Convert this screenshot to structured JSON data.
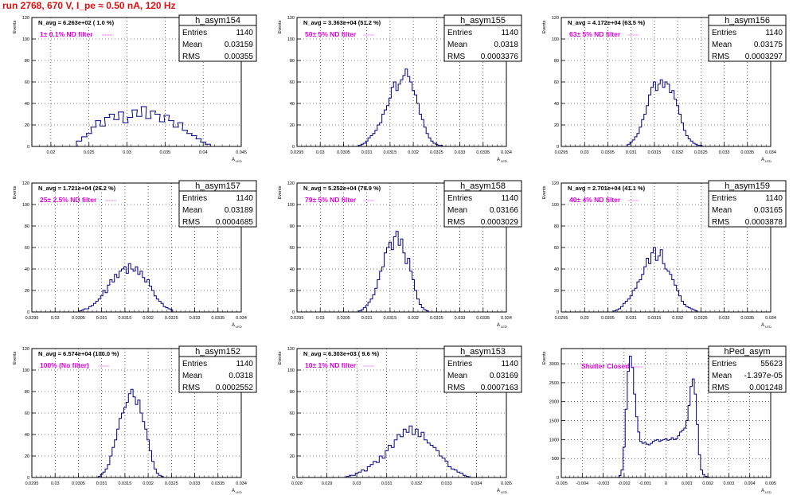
{
  "page": {
    "title": "run 2768,   670 V, I_pe ≈ 0.50 nA, 120 Hz"
  },
  "colors": {
    "hist": "#000080",
    "title": "#e01010",
    "filter": "#e000e0",
    "grid": "#000000"
  },
  "stat_labels": {
    "entries": "Entries",
    "mean": "Mean",
    "rms": "RMS"
  },
  "chart_data": [
    {
      "type": "histogram",
      "name": "h_asym154",
      "navg": "N_avg = 6.263e+02 ( 1.0 %)",
      "filter": "1± 0.1% ND filter",
      "ylabel": "Events",
      "xlabel": "A",
      "xlabel_sub": "LED",
      "xlim": [
        0.0175,
        0.045
      ],
      "ylim": [
        0,
        120
      ],
      "xticks": [
        "0.02",
        "0.025",
        "0.03",
        "0.035",
        "0.04",
        "0.045"
      ],
      "xtick_vals": [
        0.02,
        0.025,
        0.03,
        0.035,
        0.04,
        0.045
      ],
      "yticks": [
        0,
        20,
        40,
        60,
        80,
        100,
        120
      ],
      "stats": {
        "entries": "1140",
        "mean": "0.03159",
        "rms": "0.00355"
      },
      "x": [
        0.0237,
        0.0244,
        0.025,
        0.0256,
        0.0262,
        0.0268,
        0.0274,
        0.028,
        0.0286,
        0.0292,
        0.0298,
        0.0304,
        0.031,
        0.0316,
        0.0322,
        0.0328,
        0.0334,
        0.034,
        0.0346,
        0.0352,
        0.0358,
        0.0364,
        0.037,
        0.0376,
        0.0382,
        0.0388,
        0.0394,
        0.04,
        0.0406
      ],
      "values": [
        5,
        9,
        12,
        18,
        24,
        19,
        27,
        30,
        25,
        32,
        22,
        27,
        34,
        28,
        37,
        26,
        33,
        30,
        23,
        29,
        24,
        18,
        22,
        15,
        12,
        10,
        7,
        4,
        2
      ]
    },
    {
      "type": "histogram",
      "name": "h_asym155",
      "navg": "N_avg = 3.363e+04 (51.2 %)",
      "filter": "50± 5% ND filter",
      "ylabel": "Events",
      "xlabel": "A",
      "xlabel_sub": "LED",
      "xlim": [
        0.0295,
        0.034
      ],
      "ylim": [
        0,
        120
      ],
      "xticks": [
        "0.0295",
        "0.03",
        "0.0305",
        "0.031",
        "0.0315",
        "0.032",
        "0.0325",
        "0.033",
        "0.0335",
        "0.034"
      ],
      "xtick_vals": [
        0.0295,
        0.03,
        0.0305,
        0.031,
        0.0315,
        0.032,
        0.0325,
        0.033,
        0.0335,
        0.034
      ],
      "yticks": [
        0,
        20,
        40,
        60,
        80,
        100,
        120
      ],
      "stats": {
        "entries": "1140",
        "mean": "0.0318",
        "rms": "0.0003376"
      },
      "x": [
        0.03085,
        0.0309,
        0.03095,
        0.031,
        0.03105,
        0.0311,
        0.03115,
        0.0312,
        0.03125,
        0.0313,
        0.03135,
        0.0314,
        0.03145,
        0.0315,
        0.03155,
        0.0316,
        0.03165,
        0.0317,
        0.03175,
        0.0318,
        0.03185,
        0.0319,
        0.03195,
        0.032,
        0.03205,
        0.0321,
        0.03215,
        0.0322,
        0.03225,
        0.0323,
        0.03235,
        0.0324,
        0.03245,
        0.0325,
        0.03255,
        0.0326
      ],
      "values": [
        1,
        2,
        3,
        5,
        8,
        10,
        12,
        15,
        20,
        22,
        30,
        34,
        38,
        45,
        55,
        60,
        52,
        58,
        62,
        66,
        72,
        65,
        60,
        52,
        48,
        40,
        30,
        25,
        18,
        12,
        8,
        5,
        3,
        2,
        1,
        1
      ]
    },
    {
      "type": "histogram",
      "name": "h_asym156",
      "navg": "N_avg = 4.172e+04 (63.5 %)",
      "filter": "63± 5% ND filter",
      "ylabel": "Events",
      "xlabel": "A",
      "xlabel_sub": "LED",
      "xlim": [
        0.0295,
        0.034
      ],
      "ylim": [
        0,
        120
      ],
      "xticks": [
        "0.0295",
        "0.03",
        "0.0305",
        "0.031",
        "0.0315",
        "0.032",
        "0.0325",
        "0.033",
        "0.0335",
        "0.034"
      ],
      "xtick_vals": [
        0.0295,
        0.03,
        0.0305,
        0.031,
        0.0315,
        0.032,
        0.0325,
        0.033,
        0.0335,
        0.034
      ],
      "yticks": [
        0,
        20,
        40,
        60,
        80,
        100,
        120
      ],
      "stats": {
        "entries": "1140",
        "mean": "0.03175",
        "rms": "0.0003297"
      },
      "x": [
        0.03095,
        0.031,
        0.03105,
        0.0311,
        0.03115,
        0.0312,
        0.03125,
        0.0313,
        0.03135,
        0.0314,
        0.03145,
        0.0315,
        0.03155,
        0.0316,
        0.03165,
        0.0317,
        0.03175,
        0.0318,
        0.03185,
        0.0319,
        0.03195,
        0.032,
        0.03205,
        0.0321,
        0.03215,
        0.0322,
        0.03225,
        0.0323,
        0.03235,
        0.0324,
        0.03245,
        0.0325
      ],
      "values": [
        2,
        4,
        6,
        9,
        12,
        18,
        25,
        30,
        38,
        48,
        55,
        60,
        52,
        58,
        62,
        55,
        60,
        58,
        50,
        52,
        44,
        38,
        30,
        22,
        15,
        10,
        7,
        5,
        3,
        2,
        1,
        1
      ]
    },
    {
      "type": "histogram",
      "name": "h_asym157",
      "navg": "N_avg = 1.721e+04 (26.2 %)",
      "filter": "25± 2.5% ND filter",
      "ylabel": "Events",
      "xlabel": "A",
      "xlabel_sub": "LED",
      "xlim": [
        0.0295,
        0.034
      ],
      "ylim": [
        0,
        120
      ],
      "xticks": [
        "0.0295",
        "0.03",
        "0.0305",
        "0.031",
        "0.0315",
        "0.032",
        "0.0325",
        "0.033",
        "0.0335",
        "0.034"
      ],
      "xtick_vals": [
        0.0295,
        0.03,
        0.0305,
        0.031,
        0.0315,
        0.032,
        0.0325,
        0.033,
        0.0335,
        0.034
      ],
      "yticks": [
        0,
        20,
        40,
        60,
        80,
        100,
        120
      ],
      "stats": {
        "entries": "1140",
        "mean": "0.03189",
        "rms": "0.0004685"
      },
      "x": [
        0.03055,
        0.0306,
        0.03065,
        0.0307,
        0.03075,
        0.0308,
        0.03085,
        0.0309,
        0.03095,
        0.031,
        0.03105,
        0.0311,
        0.03115,
        0.0312,
        0.03125,
        0.0313,
        0.03135,
        0.0314,
        0.03145,
        0.0315,
        0.03155,
        0.0316,
        0.03165,
        0.0317,
        0.03175,
        0.0318,
        0.03185,
        0.0319,
        0.03195,
        0.032,
        0.03205,
        0.0321,
        0.03215,
        0.0322,
        0.03225,
        0.0323,
        0.03235,
        0.0324,
        0.03245,
        0.0325
      ],
      "values": [
        1,
        2,
        3,
        3,
        5,
        6,
        8,
        10,
        12,
        15,
        20,
        18,
        25,
        30,
        28,
        35,
        32,
        38,
        40,
        42,
        36,
        45,
        40,
        38,
        42,
        35,
        38,
        32,
        28,
        30,
        24,
        20,
        15,
        12,
        10,
        8,
        5,
        4,
        3,
        2
      ]
    },
    {
      "type": "histogram",
      "name": "h_asym158",
      "navg": "N_avg = 5.252e+04 (79.9 %)",
      "filter": "79± 5% ND filter",
      "ylabel": "Events",
      "xlabel": "A",
      "xlabel_sub": "LED",
      "xlim": [
        0.0295,
        0.034
      ],
      "ylim": [
        0,
        120
      ],
      "xticks": [
        "0.0295",
        "0.03",
        "0.0305",
        "0.031",
        "0.0315",
        "0.032",
        "0.0325",
        "0.033",
        "0.0335",
        "0.034"
      ],
      "xtick_vals": [
        0.0295,
        0.03,
        0.0305,
        0.031,
        0.0315,
        0.032,
        0.0325,
        0.033,
        0.0335,
        0.034
      ],
      "yticks": [
        0,
        20,
        40,
        60,
        80,
        100,
        120
      ],
      "stats": {
        "entries": "1140",
        "mean": "0.03166",
        "rms": "0.0003029"
      },
      "x": [
        0.03085,
        0.0309,
        0.03095,
        0.031,
        0.03105,
        0.0311,
        0.03115,
        0.0312,
        0.03125,
        0.0313,
        0.03135,
        0.0314,
        0.03145,
        0.0315,
        0.03155,
        0.0316,
        0.03165,
        0.0317,
        0.03175,
        0.0318,
        0.03185,
        0.0319,
        0.03195,
        0.032,
        0.03205,
        0.0321,
        0.03215,
        0.0322,
        0.03225,
        0.0323
      ],
      "values": [
        1,
        2,
        4,
        6,
        9,
        12,
        16,
        22,
        30,
        38,
        42,
        55,
        60,
        65,
        58,
        70,
        75,
        62,
        68,
        55,
        45,
        50,
        38,
        30,
        20,
        12,
        7,
        4,
        2,
        1
      ]
    },
    {
      "type": "histogram",
      "name": "h_asym159",
      "navg": "N_avg = 2.701e+04 (41.1 %)",
      "filter": "40± 4% ND filter",
      "ylabel": "Events",
      "xlabel": "A",
      "xlabel_sub": "LED",
      "xlim": [
        0.0295,
        0.034
      ],
      "ylim": [
        0,
        120
      ],
      "xticks": [
        "0.0295",
        "0.03",
        "0.0305",
        "0.031",
        "0.0315",
        "0.032",
        "0.0325",
        "0.033",
        "0.0335",
        "0.034"
      ],
      "xtick_vals": [
        0.0295,
        0.03,
        0.0305,
        0.031,
        0.0315,
        0.032,
        0.0325,
        0.033,
        0.0335,
        0.034
      ],
      "yticks": [
        0,
        20,
        40,
        60,
        80,
        100,
        120
      ],
      "stats": {
        "entries": "1140",
        "mean": "0.03165",
        "rms": "0.0003878"
      },
      "x": [
        0.03065,
        0.0307,
        0.03075,
        0.0308,
        0.03085,
        0.0309,
        0.03095,
        0.031,
        0.03105,
        0.0311,
        0.03115,
        0.0312,
        0.03125,
        0.0313,
        0.03135,
        0.0314,
        0.03145,
        0.0315,
        0.03155,
        0.0316,
        0.03165,
        0.0317,
        0.03175,
        0.0318,
        0.03185,
        0.0319,
        0.03195,
        0.032,
        0.03205,
        0.0321,
        0.03215,
        0.0322,
        0.03225,
        0.0323,
        0.03235,
        0.0324
      ],
      "values": [
        1,
        2,
        3,
        5,
        8,
        10,
        12,
        15,
        20,
        22,
        28,
        30,
        35,
        42,
        50,
        45,
        55,
        60,
        48,
        52,
        58,
        45,
        40,
        38,
        35,
        30,
        25,
        20,
        15,
        10,
        7,
        5,
        4,
        3,
        2,
        1
      ]
    },
    {
      "type": "histogram",
      "name": "h_asym152",
      "navg": "N_avg = 6.574e+04 (100.0 %)",
      "filter": "100% (No filter)",
      "ylabel": "Events",
      "xlabel": "A",
      "xlabel_sub": "LED",
      "xlim": [
        0.0295,
        0.034
      ],
      "ylim": [
        0,
        120
      ],
      "xticks": [
        "0.0295",
        "0.03",
        "0.0305",
        "0.031",
        "0.0315",
        "0.032",
        "0.0325",
        "0.033",
        "0.0335",
        "0.034"
      ],
      "xtick_vals": [
        0.0295,
        0.03,
        0.0305,
        0.031,
        0.0315,
        0.032,
        0.0325,
        0.033,
        0.0335,
        0.034
      ],
      "yticks": [
        0,
        20,
        40,
        60,
        80,
        100,
        120
      ],
      "stats": {
        "entries": "1140",
        "mean": "0.0318",
        "rms": "0.0002552"
      },
      "x": [
        0.03095,
        0.031,
        0.03105,
        0.0311,
        0.03115,
        0.0312,
        0.03125,
        0.0313,
        0.03135,
        0.0314,
        0.03145,
        0.0315,
        0.03155,
        0.0316,
        0.03165,
        0.0317,
        0.03175,
        0.0318,
        0.03185,
        0.0319,
        0.03195,
        0.032,
        0.03205,
        0.0321,
        0.03215,
        0.0322,
        0.03225,
        0.0323
      ],
      "values": [
        1,
        3,
        5,
        8,
        12,
        20,
        28,
        35,
        45,
        55,
        60,
        65,
        70,
        78,
        82,
        75,
        68,
        72,
        60,
        52,
        45,
        35,
        25,
        15,
        8,
        4,
        2,
        1
      ]
    },
    {
      "type": "histogram",
      "name": "h_asym153",
      "navg": "N_avg = 6.303e+03 ( 9.6 %)",
      "filter": "10± 1% ND filter",
      "ylabel": "Events",
      "xlabel": "A",
      "xlabel_sub": "LED",
      "xlim": [
        0.028,
        0.035
      ],
      "ylim": [
        0,
        120
      ],
      "xticks": [
        "0.028",
        "0.029",
        "0.03",
        "0.031",
        "0.032",
        "0.033",
        "0.034",
        "0.035"
      ],
      "xtick_vals": [
        0.028,
        0.029,
        0.03,
        0.031,
        0.032,
        0.033,
        0.034,
        0.035
      ],
      "yticks": [
        0,
        20,
        40,
        60,
        80,
        100,
        120
      ],
      "stats": {
        "entries": "1140",
        "mean": "0.03169",
        "rms": "0.0007163"
      },
      "x": [
        0.0297,
        0.0298,
        0.0299,
        0.03,
        0.0301,
        0.0302,
        0.0303,
        0.0304,
        0.0305,
        0.0306,
        0.0307,
        0.0308,
        0.0309,
        0.031,
        0.0311,
        0.0312,
        0.0313,
        0.0314,
        0.0315,
        0.0316,
        0.0317,
        0.0318,
        0.0319,
        0.032,
        0.0321,
        0.0322,
        0.0323,
        0.0324,
        0.0325,
        0.0326,
        0.0327,
        0.0328,
        0.0329,
        0.033,
        0.0331,
        0.0332,
        0.0333,
        0.0334,
        0.0335,
        0.0336,
        0.0337
      ],
      "values": [
        1,
        2,
        2,
        4,
        5,
        7,
        6,
        10,
        12,
        15,
        14,
        20,
        18,
        25,
        30,
        28,
        35,
        40,
        38,
        45,
        42,
        48,
        40,
        45,
        38,
        42,
        35,
        32,
        30,
        28,
        25,
        20,
        18,
        15,
        10,
        8,
        7,
        5,
        4,
        2,
        1
      ]
    },
    {
      "type": "histogram",
      "name": "hPed_asym",
      "navg": "",
      "filter": "Shutter Closed",
      "ylabel": "Events",
      "xlabel": "A",
      "xlabel_sub": "LED",
      "xlim": [
        -0.005,
        0.005
      ],
      "ylim": [
        0,
        3400
      ],
      "xticks": [
        "-0.005",
        "-0.004",
        "-0.003",
        "-0.002",
        "-0.001",
        "0",
        "0.001",
        "0.002",
        "0.003",
        "0.004",
        "0.005"
      ],
      "xtick_vals": [
        -0.005,
        -0.004,
        -0.003,
        -0.002,
        -0.001,
        0,
        0.001,
        0.002,
        0.003,
        0.004,
        0.005
      ],
      "yticks": [
        0,
        500,
        1000,
        1500,
        2000,
        2500,
        3000
      ],
      "stats": {
        "entries": "55623",
        "mean": "-1.397e-05",
        "rms": "0.001248"
      },
      "x": [
        -0.0022,
        -0.0021,
        -0.002,
        -0.0019,
        -0.0018,
        -0.0017,
        -0.0016,
        -0.0015,
        -0.0014,
        -0.0013,
        -0.0012,
        -0.0011,
        -0.001,
        -0.0009,
        -0.0008,
        -0.0007,
        -0.0006,
        -0.0005,
        -0.0004,
        -0.0003,
        -0.0002,
        -0.0001,
        0.0,
        0.0001,
        0.0002,
        0.0003,
        0.0004,
        0.0005,
        0.0006,
        0.0007,
        0.0008,
        0.0009,
        0.001,
        0.0011,
        0.0012,
        0.0013,
        0.0014,
        0.0015,
        0.0016,
        0.0017,
        0.0018,
        0.0019,
        0.002
      ],
      "values": [
        50,
        200,
        800,
        1800,
        2800,
        3200,
        2900,
        2200,
        1600,
        1200,
        950,
        900,
        920,
        880,
        860,
        900,
        950,
        980,
        1000,
        950,
        980,
        1000,
        1020,
        980,
        1000,
        1050,
        1000,
        1020,
        1100,
        1200,
        1250,
        1300,
        1500,
        1900,
        2400,
        2600,
        2200,
        1400,
        600,
        200,
        80,
        30,
        10
      ]
    }
  ]
}
